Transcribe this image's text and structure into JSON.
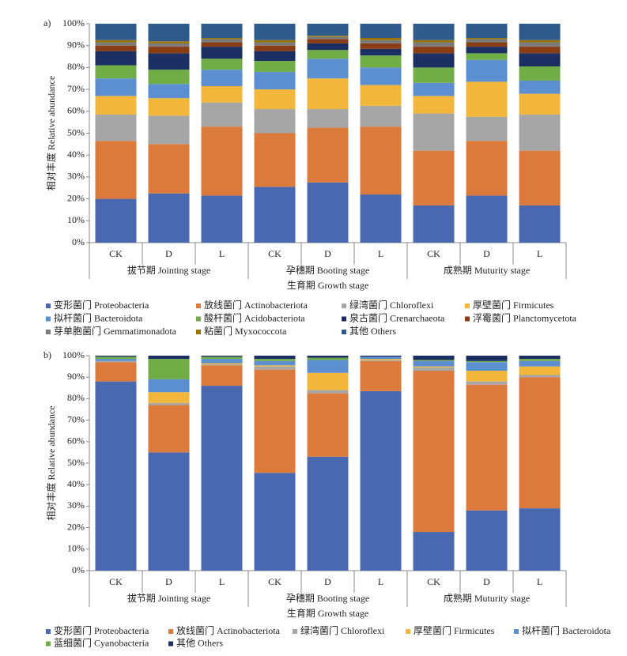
{
  "chart_data": [
    {
      "type": "bar",
      "stacked": true,
      "panel_label": "a)",
      "y_label": "相对丰度 Relative abundance",
      "x_label": "生育期 Growth stage",
      "categories": [
        "CK",
        "D",
        "L",
        "CK",
        "D",
        "L",
        "CK",
        "D",
        "L"
      ],
      "groups": [
        "拔节期 Jointing stage",
        "孕穗期 Booting stage",
        "成熟期 Muturity stage"
      ],
      "ylim": [
        0,
        100
      ],
      "yticks": [
        {
          "value": 0,
          "label": "0%"
        },
        {
          "value": 10,
          "label": "10%"
        },
        {
          "value": 20,
          "label": "20%"
        },
        {
          "value": 30,
          "label": "30%"
        },
        {
          "value": 40,
          "label": "40%"
        },
        {
          "value": 50,
          "label": "50%"
        },
        {
          "value": 60,
          "label": "60%"
        },
        {
          "value": 70,
          "label": "70%"
        },
        {
          "value": 80,
          "label": "80%"
        },
        {
          "value": 90,
          "label": "90%"
        },
        {
          "value": 100,
          "label": "100%"
        }
      ],
      "series": [
        {
          "name": "变形菌门 Proteobacteria",
          "color": "#4a68b0",
          "values": [
            20,
            22.5,
            21.5,
            25.5,
            27.5,
            22,
            17,
            21.5,
            17
          ]
        },
        {
          "name": "放线菌门 Actinobacteriota",
          "color": "#dc7a3c",
          "values": [
            26.5,
            22.5,
            31.5,
            24.5,
            25,
            31,
            25,
            25,
            25
          ]
        },
        {
          "name": "绿湾菌门 Chloroflexi",
          "color": "#a6a6a6",
          "values": [
            12,
            13,
            11,
            11,
            8.5,
            9.5,
            17,
            11,
            16.5
          ]
        },
        {
          "name": "厚壁菌门 Firmicutes",
          "color": "#f2b73a",
          "values": [
            8.5,
            8,
            7.5,
            9,
            14,
            9.5,
            8,
            16,
            9.5
          ]
        },
        {
          "name": "拟杆菌门 Bacteroidota",
          "color": "#5b8fd0",
          "values": [
            8,
            6.5,
            7.5,
            8,
            9,
            8,
            6,
            10,
            6
          ]
        },
        {
          "name": "酸杆菌门 Acidobacteriota",
          "color": "#70ad47",
          "values": [
            6,
            6.5,
            5,
            5,
            4,
            5.5,
            7,
            3,
            6.5
          ]
        },
        {
          "name": "泉古菌门 Crenarchaeota",
          "color": "#1c2f63",
          "values": [
            6.5,
            7.5,
            5.5,
            4.5,
            3,
            3,
            6.5,
            3,
            6
          ]
        },
        {
          "name": "浮霉菌门 Planctomycetota",
          "color": "#8a3c14",
          "values": [
            2.5,
            3,
            2,
            2.5,
            2,
            2.5,
            3,
            2,
            3
          ]
        },
        {
          "name": "芽单胞菌门 Gemmatimonadota",
          "color": "#7b7b7b",
          "values": [
            1.5,
            1.5,
            1.5,
            1.5,
            1,
            1.5,
            2,
            1.5,
            2
          ]
        },
        {
          "name": "粘菌门 Myxococcota",
          "color": "#9a7400",
          "values": [
            1,
            1,
            0.5,
            1,
            0.5,
            1,
            1,
            0.5,
            1
          ]
        },
        {
          "name": "其他 Others",
          "color": "#2e5b8c",
          "values": [
            7.5,
            8,
            6.5,
            7.5,
            5.5,
            6.5,
            7.5,
            6.5,
            7.5
          ]
        }
      ]
    },
    {
      "type": "bar",
      "stacked": true,
      "panel_label": "b)",
      "y_label": "相对丰度 Relative abundance",
      "x_label": "生育期 Growth stage",
      "categories": [
        "CK",
        "D",
        "L",
        "CK",
        "D",
        "L",
        "CK",
        "D",
        "L"
      ],
      "groups": [
        "拔节期 Jointing stage",
        "孕穗期 Booting stage",
        "成熟期 Muturity stage"
      ],
      "ylim": [
        0,
        100
      ],
      "yticks": [
        {
          "value": 0,
          "label": "0%"
        },
        {
          "value": 10,
          "label": "10%"
        },
        {
          "value": 20,
          "label": "20%"
        },
        {
          "value": 30,
          "label": "30%"
        },
        {
          "value": 40,
          "label": "40%"
        },
        {
          "value": 50,
          "label": "50%"
        },
        {
          "value": 60,
          "label": "60%"
        },
        {
          "value": 70,
          "label": "70%"
        },
        {
          "value": 80,
          "label": "80%"
        },
        {
          "value": 90,
          "label": "90%"
        },
        {
          "value": 100,
          "label": "100%"
        }
      ],
      "series": [
        {
          "name": "变形菌门 Proteobacteria",
          "color": "#4a68b0",
          "values": [
            88,
            55,
            86,
            45.5,
            53,
            83.5,
            18,
            28,
            29
          ]
        },
        {
          "name": "放线菌门 Actinobacteriota",
          "color": "#dc7a3c",
          "values": [
            9,
            22,
            9.5,
            48,
            29.5,
            14,
            75,
            58.5,
            61
          ]
        },
        {
          "name": "绿湾菌门 Chloroflexi",
          "color": "#a6a6a6",
          "values": [
            0.5,
            1,
            0.5,
            1.5,
            1.5,
            0.5,
            1.5,
            1.5,
            1
          ]
        },
        {
          "name": "厚壁菌门 Firmicutes",
          "color": "#f2b73a",
          "values": [
            0,
            5,
            0.5,
            0.5,
            8,
            0.5,
            0.5,
            5,
            4
          ]
        },
        {
          "name": "拟杆菌门 Bacteroidota",
          "color": "#5b8fd0",
          "values": [
            1,
            6,
            2,
            2,
            6,
            1,
            2.5,
            4,
            2.5
          ]
        },
        {
          "name": "蓝细菌门 Cyanobacteria",
          "color": "#70ad47",
          "values": [
            1,
            9.5,
            1,
            1,
            1,
            0,
            0.5,
            0.5,
            1
          ]
        },
        {
          "name": "其他 Others",
          "color": "#1c2f63",
          "values": [
            0.5,
            1.5,
            0.5,
            1.5,
            1,
            0.5,
            2,
            2.5,
            1.5
          ]
        }
      ]
    }
  ]
}
